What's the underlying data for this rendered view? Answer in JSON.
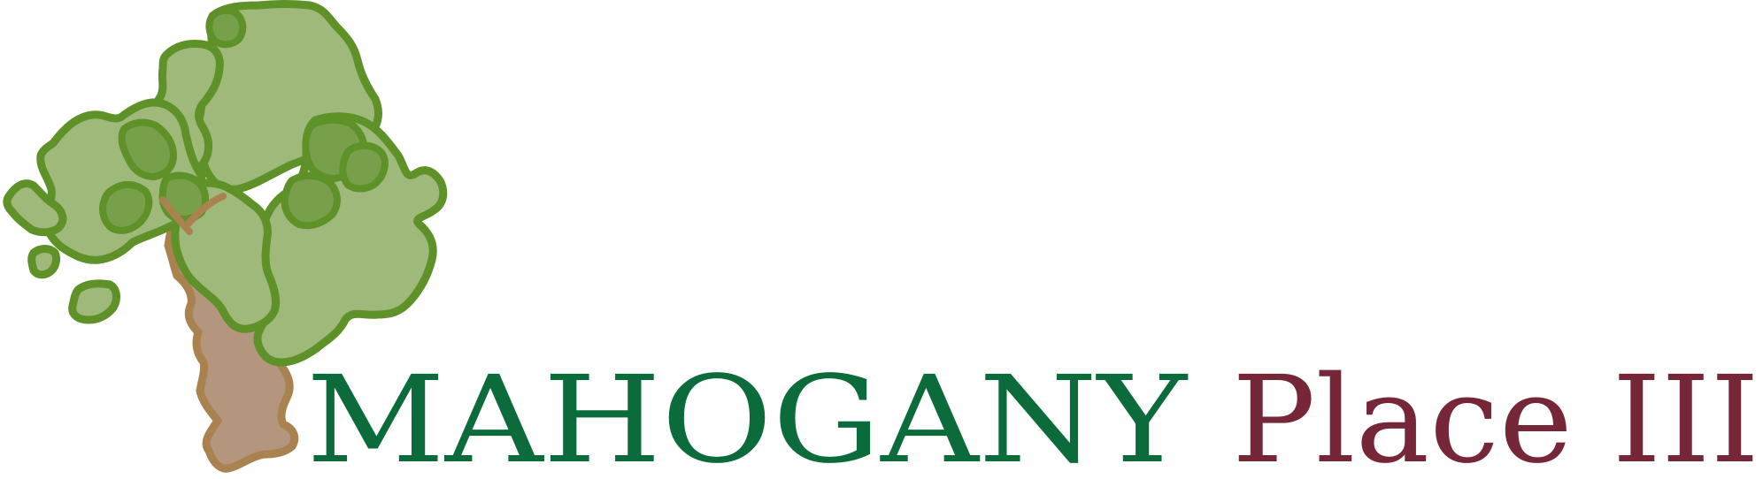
{
  "logo": {
    "brand_name": "MAHOGANY",
    "sub_name": "Place III",
    "colors": {
      "brand_green": "#0b6b3a",
      "place_maroon": "#762737",
      "foliage_fill": "#9fb97a",
      "foliage_fill_dark": "#78a04a",
      "foliage_outline": "#5e9128",
      "trunk_fill": "#b3967d",
      "trunk_outline": "#a9824f"
    },
    "icons": {
      "tree": "mahogany-tree-icon"
    }
  }
}
